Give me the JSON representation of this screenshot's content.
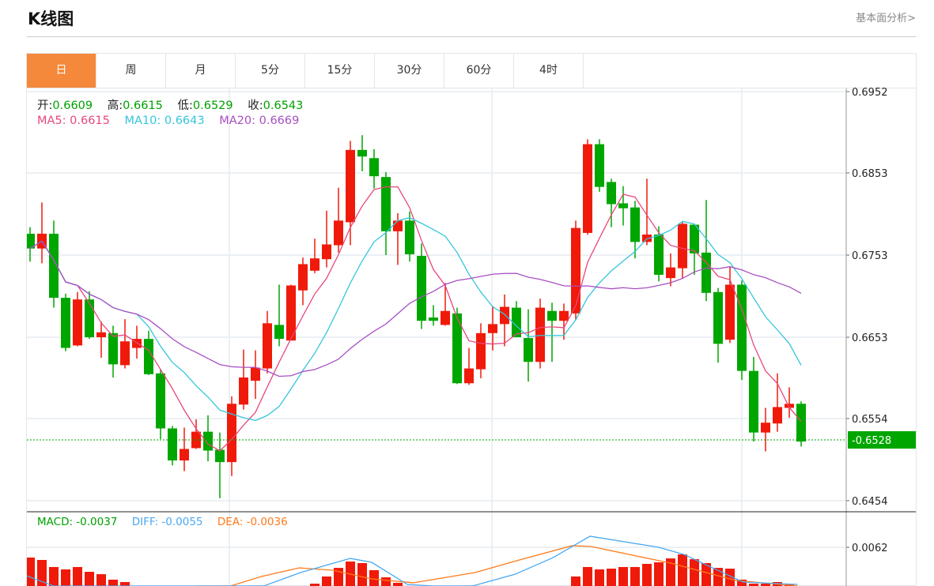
{
  "header": {
    "title": "K线图",
    "more_link": "基本面分析>"
  },
  "tabs": [
    {
      "label": "日",
      "active": true
    },
    {
      "label": "周"
    },
    {
      "label": "月"
    },
    {
      "label": "5分"
    },
    {
      "label": "15分"
    },
    {
      "label": "30分"
    },
    {
      "label": "60分"
    },
    {
      "label": "4时"
    }
  ],
  "ohlc_info": {
    "open_label": "开:",
    "open": "0.6609",
    "high_label": "高:",
    "high": "0.6615",
    "low_label": "低:",
    "low": "0.6529",
    "close_label": "收:",
    "close": "0.6543"
  },
  "ma_info": {
    "ma5": "MA5: 0.6615",
    "ma10": "MA10: 0.6643",
    "ma20": "MA20: 0.6669"
  },
  "macd_info": {
    "macd": "MACD: -0.0037",
    "diff": "DIFF: -0.0055",
    "dea": "DEA: -0.0036"
  },
  "price_axis": {
    "ticks": [
      "0.6952",
      "0.6853",
      "0.6753",
      "0.6653",
      "0.6554",
      "0.6454"
    ],
    "current_price": "0.6528"
  },
  "macd_axis": {
    "ticks": [
      "0.0062"
    ]
  },
  "colors": {
    "up": "#f01a0a",
    "down": "#00a600",
    "ma5": "#e8477d",
    "ma10": "#35c6dc",
    "ma20": "#a84fc2",
    "diff": "#4aa8f0",
    "dea": "#ff7a1a",
    "active_tab": "#f5893b"
  },
  "chart_data": {
    "type": "candlestick",
    "ylim": [
      0.6454,
      0.6952
    ],
    "candles": [
      [
        0.6779,
        0.6787,
        0.6745,
        0.6761
      ],
      [
        0.6761,
        0.6817,
        0.6743,
        0.6779
      ],
      [
        0.6779,
        0.6795,
        0.6689,
        0.6701
      ],
      [
        0.6701,
        0.6706,
        0.6636,
        0.664
      ],
      [
        0.6643,
        0.6708,
        0.6642,
        0.6699
      ],
      [
        0.6699,
        0.6709,
        0.6651,
        0.6653
      ],
      [
        0.6653,
        0.6672,
        0.6628,
        0.6659
      ],
      [
        0.6658,
        0.6667,
        0.6604,
        0.662
      ],
      [
        0.6619,
        0.6675,
        0.6615,
        0.6648
      ],
      [
        0.664,
        0.6667,
        0.6627,
        0.6651
      ],
      [
        0.6651,
        0.6661,
        0.6607,
        0.6608
      ],
      [
        0.6609,
        0.6614,
        0.6529,
        0.6542
      ],
      [
        0.6542,
        0.6545,
        0.6497,
        0.6503
      ],
      [
        0.6503,
        0.6543,
        0.649,
        0.6517
      ],
      [
        0.6518,
        0.6553,
        0.6517,
        0.6538
      ],
      [
        0.6538,
        0.6558,
        0.6502,
        0.6515
      ],
      [
        0.6516,
        0.6537,
        0.6457,
        0.6501
      ],
      [
        0.6501,
        0.6581,
        0.6484,
        0.6572
      ],
      [
        0.6571,
        0.6638,
        0.6565,
        0.6604
      ],
      [
        0.66,
        0.6637,
        0.6578,
        0.6616
      ],
      [
        0.6615,
        0.6685,
        0.6609,
        0.667
      ],
      [
        0.6668,
        0.6717,
        0.6642,
        0.6651
      ],
      [
        0.6649,
        0.6717,
        0.6649,
        0.6716
      ],
      [
        0.671,
        0.675,
        0.6692,
        0.6742
      ],
      [
        0.6734,
        0.6773,
        0.6731,
        0.6749
      ],
      [
        0.6748,
        0.6807,
        0.6738,
        0.6766
      ],
      [
        0.6765,
        0.6835,
        0.6756,
        0.6795
      ],
      [
        0.6793,
        0.6892,
        0.6765,
        0.6881
      ],
      [
        0.6881,
        0.6899,
        0.6855,
        0.6873
      ],
      [
        0.6871,
        0.6882,
        0.6834,
        0.6849
      ],
      [
        0.6848,
        0.6854,
        0.6753,
        0.6782
      ],
      [
        0.6782,
        0.6804,
        0.6741,
        0.6795
      ],
      [
        0.6795,
        0.6806,
        0.6745,
        0.6754
      ],
      [
        0.6752,
        0.6767,
        0.6663,
        0.6673
      ],
      [
        0.6677,
        0.6692,
        0.6667,
        0.6673
      ],
      [
        0.6668,
        0.6719,
        0.6667,
        0.6685
      ],
      [
        0.6682,
        0.6689,
        0.6596,
        0.6597
      ],
      [
        0.6597,
        0.664,
        0.6595,
        0.6615
      ],
      [
        0.6614,
        0.667,
        0.6603,
        0.6658
      ],
      [
        0.6658,
        0.6691,
        0.6637,
        0.6669
      ],
      [
        0.6669,
        0.6705,
        0.6642,
        0.669
      ],
      [
        0.6689,
        0.6697,
        0.6653,
        0.6653
      ],
      [
        0.6652,
        0.6687,
        0.6599,
        0.6623
      ],
      [
        0.6623,
        0.67,
        0.6615,
        0.6689
      ],
      [
        0.6685,
        0.6695,
        0.6623,
        0.6673
      ],
      [
        0.6673,
        0.6694,
        0.665,
        0.6685
      ],
      [
        0.6682,
        0.6795,
        0.6674,
        0.6786
      ],
      [
        0.678,
        0.6894,
        0.6778,
        0.6888
      ],
      [
        0.6888,
        0.6894,
        0.683,
        0.6836
      ],
      [
        0.6842,
        0.6846,
        0.6787,
        0.6815
      ],
      [
        0.6816,
        0.6837,
        0.6789,
        0.681
      ],
      [
        0.6811,
        0.6819,
        0.6749,
        0.6769
      ],
      [
        0.6769,
        0.6846,
        0.6765,
        0.6778
      ],
      [
        0.6778,
        0.6788,
        0.6721,
        0.6729
      ],
      [
        0.6725,
        0.6755,
        0.6715,
        0.6738
      ],
      [
        0.6737,
        0.6793,
        0.6725,
        0.6791
      ],
      [
        0.679,
        0.6791,
        0.6729,
        0.6755
      ],
      [
        0.6756,
        0.682,
        0.6697,
        0.6707
      ],
      [
        0.6708,
        0.6713,
        0.6622,
        0.6645
      ],
      [
        0.665,
        0.6739,
        0.6646,
        0.6717
      ],
      [
        0.6717,
        0.6722,
        0.6601,
        0.6612
      ],
      [
        0.6612,
        0.6629,
        0.6526,
        0.6537
      ],
      [
        0.6537,
        0.6567,
        0.6514,
        0.6549
      ],
      [
        0.6548,
        0.6609,
        0.6538,
        0.6568
      ],
      [
        0.6567,
        0.6592,
        0.6555,
        0.6572
      ],
      [
        0.6572,
        0.6575,
        0.652,
        0.6526
      ]
    ],
    "current_price": 0.6528,
    "macd": {
      "ylim_ref": 0.0062,
      "hist": [
        0.005,
        0.00472,
        0.00389,
        0.00361,
        0.00389,
        0.00333,
        0.00305,
        0.00241,
        0.00213,
        null,
        null,
        null,
        null,
        null,
        null,
        null,
        null,
        null,
        null,
        null,
        null,
        null,
        null,
        null,
        0.00194,
        0.00278,
        0.00379,
        0.00453,
        0.00435,
        0.00352,
        0.00268,
        0.00204,
        null,
        null,
        null,
        null,
        null,
        null,
        null,
        null,
        null,
        null,
        null,
        null,
        null,
        null,
        0.00278,
        0.00389,
        0.00361,
        0.0037,
        0.00389,
        0.00389,
        0.00426,
        0.00444,
        0.0049,
        0.00537,
        0.00481,
        0.00435,
        0.00379,
        0.0037,
        0.00241,
        0.00194,
        0.00194,
        0.00213,
        0.00185,
        null
      ],
      "diff_points": [
        [
          -0.3,
          0.00287
        ],
        [
          2,
          0.0005
        ],
        [
          17,
          0.0005
        ],
        [
          19.7,
          0.00167
        ],
        [
          22.8,
          0.00324
        ],
        [
          27,
          0.0049
        ],
        [
          28.8,
          0.00444
        ],
        [
          31.8,
          0.00185
        ],
        [
          34,
          0.0008
        ],
        [
          36,
          0.0008
        ],
        [
          37.3,
          0.00167
        ],
        [
          40.9,
          0.00305
        ],
        [
          44.1,
          0.005
        ],
        [
          47.2,
          0.0075
        ],
        [
          53,
          0.0062
        ],
        [
          55.1,
          0.00537
        ],
        [
          60.1,
          0.00213
        ],
        [
          64.7,
          0.00185
        ]
      ],
      "dea_points": [
        [
          14,
          0.0008
        ],
        [
          16.9,
          0.00167
        ],
        [
          19.5,
          0.00278
        ],
        [
          22.7,
          0.00379
        ],
        [
          25.5,
          0.00352
        ],
        [
          28.8,
          0.0025
        ],
        [
          32.3,
          0.00204
        ],
        [
          37.5,
          0.00324
        ],
        [
          41.5,
          0.00481
        ],
        [
          45.7,
          0.00639
        ],
        [
          47.3,
          0.00629
        ],
        [
          54,
          0.00435
        ],
        [
          59.5,
          0.00231
        ],
        [
          64.7,
          0.00167
        ]
      ]
    }
  }
}
